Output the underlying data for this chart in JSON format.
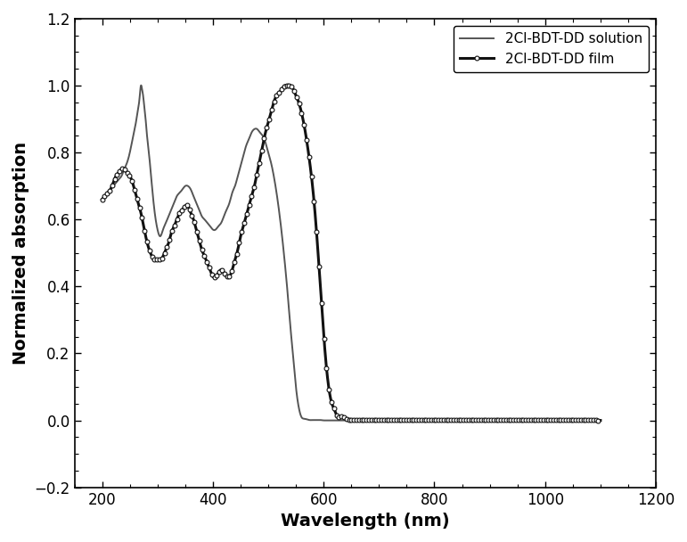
{
  "xlabel": "Wavelength (nm)",
  "ylabel": "Normalized absorption",
  "xlim": [
    150,
    1200
  ],
  "ylim": [
    -0.2,
    1.2
  ],
  "xticks": [
    200,
    400,
    600,
    800,
    1000,
    1200
  ],
  "yticks": [
    -0.2,
    0.0,
    0.2,
    0.4,
    0.6,
    0.8,
    1.0,
    1.2
  ],
  "legend_labels": [
    "2Cl-BDT-DD film",
    "2Cl-BDT-DD solution"
  ],
  "film_color": "#111111",
  "solution_color": "#555555",
  "film_linewidth": 2.2,
  "solution_linewidth": 1.4,
  "marker": "o",
  "marker_size": 3.5,
  "marker_every": 4,
  "film_x": [
    200,
    205,
    210,
    215,
    220,
    225,
    230,
    235,
    240,
    245,
    250,
    255,
    260,
    265,
    270,
    275,
    280,
    285,
    290,
    295,
    300,
    305,
    310,
    315,
    320,
    325,
    330,
    335,
    340,
    345,
    350,
    355,
    360,
    365,
    370,
    375,
    380,
    385,
    390,
    395,
    400,
    405,
    410,
    415,
    420,
    425,
    430,
    435,
    440,
    445,
    450,
    455,
    460,
    465,
    470,
    475,
    480,
    485,
    490,
    495,
    500,
    505,
    510,
    515,
    520,
    525,
    530,
    535,
    540,
    545,
    550,
    555,
    560,
    565,
    570,
    575,
    580,
    585,
    590,
    595,
    600,
    605,
    610,
    615,
    620,
    625,
    630,
    635,
    640,
    645,
    650,
    660,
    670,
    680,
    690,
    700,
    720,
    740,
    760,
    780,
    800,
    850,
    900,
    950,
    1000,
    1050,
    1100
  ],
  "film_y": [
    0.66,
    0.67,
    0.68,
    0.69,
    0.71,
    0.73,
    0.74,
    0.75,
    0.75,
    0.74,
    0.73,
    0.71,
    0.68,
    0.65,
    0.62,
    0.58,
    0.54,
    0.51,
    0.49,
    0.48,
    0.48,
    0.48,
    0.49,
    0.51,
    0.53,
    0.56,
    0.58,
    0.6,
    0.62,
    0.63,
    0.64,
    0.64,
    0.62,
    0.6,
    0.57,
    0.54,
    0.51,
    0.49,
    0.47,
    0.45,
    0.43,
    0.43,
    0.44,
    0.45,
    0.44,
    0.43,
    0.43,
    0.45,
    0.48,
    0.51,
    0.55,
    0.58,
    0.61,
    0.64,
    0.67,
    0.7,
    0.74,
    0.78,
    0.82,
    0.86,
    0.89,
    0.92,
    0.95,
    0.97,
    0.98,
    0.99,
    1.0,
    1.0,
    1.0,
    0.99,
    0.97,
    0.95,
    0.92,
    0.88,
    0.83,
    0.77,
    0.7,
    0.61,
    0.5,
    0.38,
    0.26,
    0.16,
    0.09,
    0.05,
    0.03,
    0.01,
    0.01,
    0.01,
    0.005,
    0.003,
    0.002,
    0.001,
    0.001,
    0.001,
    0.001,
    0.001,
    0.001,
    0.001,
    0.001,
    0.001,
    0.001,
    0.001,
    0.001,
    0.001,
    0.001,
    0.001,
    0.0
  ],
  "solution_x": [
    200,
    205,
    210,
    215,
    220,
    225,
    230,
    235,
    240,
    245,
    250,
    255,
    260,
    262,
    264,
    266,
    268,
    270,
    272,
    274,
    276,
    278,
    280,
    285,
    290,
    295,
    300,
    305,
    310,
    315,
    320,
    325,
    330,
    335,
    340,
    345,
    350,
    355,
    360,
    365,
    370,
    375,
    380,
    385,
    390,
    395,
    400,
    405,
    410,
    415,
    420,
    425,
    430,
    435,
    440,
    445,
    450,
    455,
    460,
    465,
    470,
    475,
    480,
    485,
    490,
    495,
    500,
    505,
    510,
    515,
    520,
    525,
    530,
    535,
    540,
    545,
    550,
    555,
    560,
    565,
    570,
    575,
    580,
    585,
    590,
    595,
    600,
    605,
    610,
    615,
    620,
    625,
    630,
    635,
    640,
    650,
    700,
    800,
    1000,
    1100
  ],
  "solution_y": [
    0.66,
    0.67,
    0.68,
    0.69,
    0.7,
    0.71,
    0.72,
    0.73,
    0.75,
    0.77,
    0.8,
    0.84,
    0.88,
    0.9,
    0.92,
    0.94,
    0.97,
    1.0,
    0.99,
    0.97,
    0.94,
    0.91,
    0.87,
    0.79,
    0.7,
    0.62,
    0.57,
    0.55,
    0.57,
    0.59,
    0.61,
    0.63,
    0.65,
    0.67,
    0.68,
    0.69,
    0.7,
    0.7,
    0.69,
    0.67,
    0.65,
    0.63,
    0.61,
    0.6,
    0.59,
    0.58,
    0.57,
    0.57,
    0.58,
    0.59,
    0.61,
    0.63,
    0.65,
    0.68,
    0.7,
    0.73,
    0.76,
    0.79,
    0.82,
    0.84,
    0.86,
    0.87,
    0.87,
    0.86,
    0.85,
    0.83,
    0.8,
    0.77,
    0.73,
    0.68,
    0.62,
    0.55,
    0.47,
    0.38,
    0.28,
    0.19,
    0.1,
    0.04,
    0.01,
    0.005,
    0.003,
    0.001,
    0.001,
    0.001,
    0.001,
    0.001,
    0.0,
    0.0,
    0.0,
    0.0,
    0.0,
    0.0,
    0.0,
    0.0,
    0.0,
    0.0,
    0.0,
    0.0,
    0.0,
    0.0
  ]
}
